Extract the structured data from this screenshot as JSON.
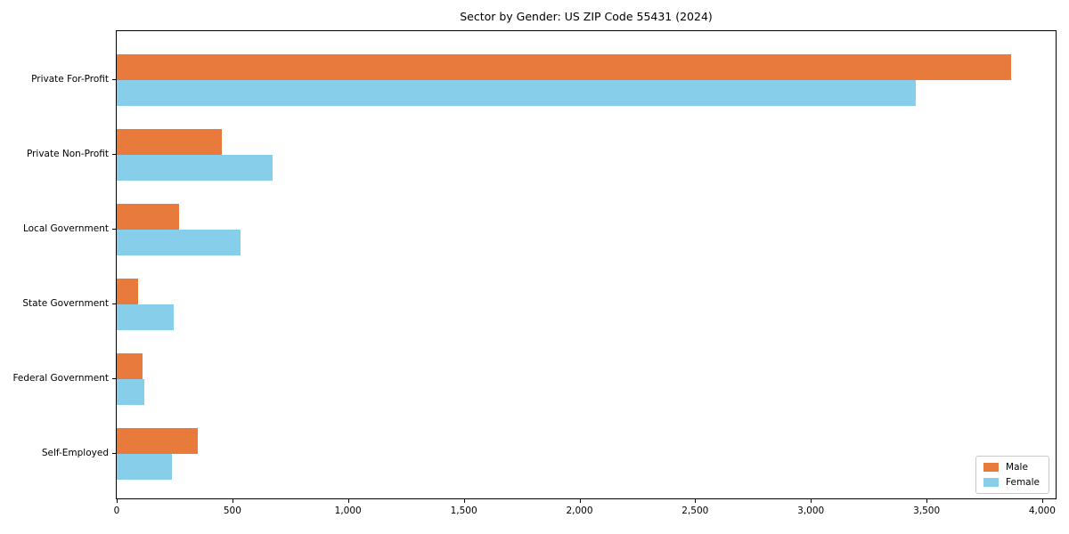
{
  "chart_data": {
    "type": "bar",
    "orientation": "horizontal",
    "title": "Sector by Gender: US ZIP Code 55431 (2024)",
    "categories": [
      "Private For-Profit",
      "Private Non-Profit",
      "Local Government",
      "State Government",
      "Federal Government",
      "Self-Employed"
    ],
    "series": [
      {
        "name": "Male",
        "color": "#E87A3C",
        "values": [
          3865,
          455,
          270,
          92,
          113,
          352
        ]
      },
      {
        "name": "Female",
        "color": "#87CEEB",
        "values": [
          3455,
          672,
          534,
          246,
          120,
          240
        ]
      }
    ],
    "xlabel": "",
    "ylabel": "",
    "xlim": [
      0,
      4058
    ],
    "xticks": [
      {
        "value": 0,
        "label": "0"
      },
      {
        "value": 500,
        "label": "500"
      },
      {
        "value": 1000,
        "label": "1,000"
      },
      {
        "value": 1500,
        "label": "1,500"
      },
      {
        "value": 2000,
        "label": "2,000"
      },
      {
        "value": 2500,
        "label": "2,500"
      },
      {
        "value": 3000,
        "label": "3,000"
      },
      {
        "value": 3500,
        "label": "3,500"
      },
      {
        "value": 4000,
        "label": "4,000"
      }
    ],
    "grid": false,
    "legend": {
      "position": "lower right"
    },
    "background_color": "#ffffff",
    "axis_color": "#000000"
  }
}
